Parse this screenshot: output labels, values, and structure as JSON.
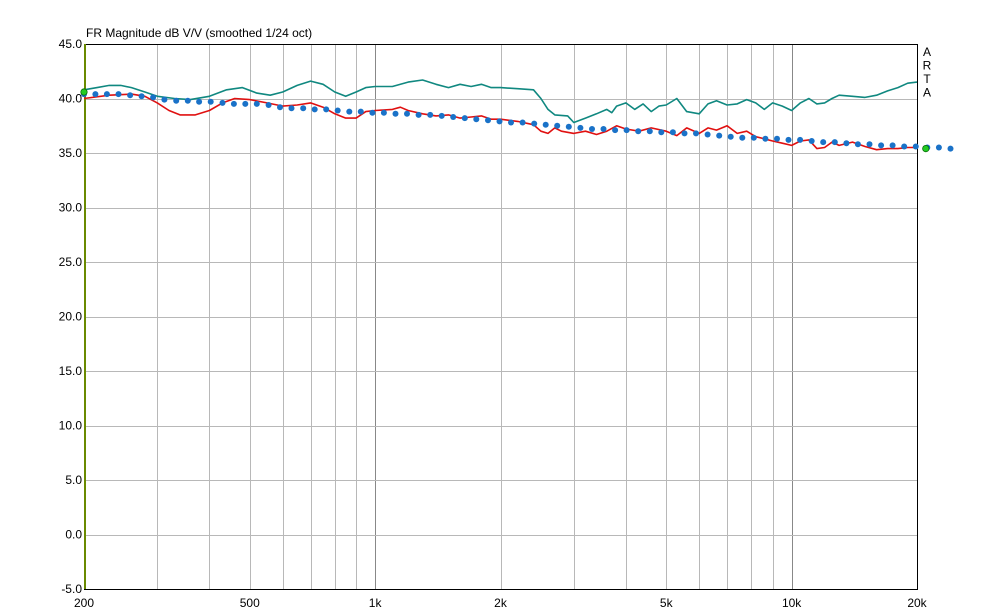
{
  "chart_data": {
    "type": "line",
    "title": "FR Magnitude dB V/V (smoothed 1/24 oct)",
    "watermark": "ARTA",
    "x_scale": "log",
    "xlim": [
      200,
      20000
    ],
    "ylim": [
      -5,
      45
    ],
    "grid": true,
    "colors": {
      "background": "#ffffff",
      "grid": "#b8b8b8",
      "grid_major": "#888888",
      "frame": "#000000",
      "left_axis": "#6a8a00",
      "cursor_marker": "#22cc22"
    },
    "y_ticks": [
      {
        "value": 45,
        "label": "45.0"
      },
      {
        "value": 40,
        "label": "40.0"
      },
      {
        "value": 35,
        "label": "35.0"
      },
      {
        "value": 30,
        "label": "30.0"
      },
      {
        "value": 25,
        "label": "25.0"
      },
      {
        "value": 20,
        "label": "20.0"
      },
      {
        "value": 15,
        "label": "15.0"
      },
      {
        "value": 10,
        "label": "10.0"
      },
      {
        "value": 5,
        "label": "5.0"
      },
      {
        "value": 0,
        "label": "0.0"
      },
      {
        "value": -5,
        "label": "-5.0"
      }
    ],
    "x_ticks": [
      {
        "value": 200,
        "label": "200"
      },
      {
        "value": 500,
        "label": "500"
      },
      {
        "value": 1000,
        "label": "1k"
      },
      {
        "value": 2000,
        "label": "2k"
      },
      {
        "value": 5000,
        "label": "5k"
      },
      {
        "value": 10000,
        "label": "10k"
      },
      {
        "value": 20000,
        "label": "20k"
      }
    ],
    "x_gridlines": [
      200,
      300,
      400,
      500,
      600,
      700,
      800,
      900,
      1000,
      2000,
      3000,
      4000,
      5000,
      6000,
      7000,
      8000,
      9000,
      10000,
      20000
    ],
    "x_major_gridlines": [
      1000,
      10000
    ],
    "cursor_markers": [
      {
        "x": 200,
        "y": 40.6
      },
      {
        "x": 21000,
        "y": 35.4
      }
    ],
    "series": [
      {
        "color": "#108880",
        "style": "line",
        "points": [
          [
            200,
            40.8
          ],
          [
            215,
            41.0
          ],
          [
            230,
            41.2
          ],
          [
            245,
            41.2
          ],
          [
            260,
            41.0
          ],
          [
            280,
            40.6
          ],
          [
            300,
            40.2
          ],
          [
            330,
            40.0
          ],
          [
            360,
            39.9
          ],
          [
            400,
            40.2
          ],
          [
            440,
            40.8
          ],
          [
            480,
            41.0
          ],
          [
            520,
            40.5
          ],
          [
            560,
            40.3
          ],
          [
            600,
            40.6
          ],
          [
            650,
            41.2
          ],
          [
            700,
            41.6
          ],
          [
            750,
            41.3
          ],
          [
            800,
            40.6
          ],
          [
            850,
            40.2
          ],
          [
            900,
            40.6
          ],
          [
            950,
            41.0
          ],
          [
            1000,
            41.1
          ],
          [
            1100,
            41.1
          ],
          [
            1200,
            41.5
          ],
          [
            1300,
            41.7
          ],
          [
            1400,
            41.3
          ],
          [
            1500,
            41.0
          ],
          [
            1600,
            41.3
          ],
          [
            1700,
            41.1
          ],
          [
            1800,
            41.3
          ],
          [
            1900,
            41.0
          ],
          [
            2000,
            41.0
          ],
          [
            2200,
            40.9
          ],
          [
            2400,
            40.8
          ],
          [
            2500,
            40.0
          ],
          [
            2600,
            39.0
          ],
          [
            2700,
            38.5
          ],
          [
            2900,
            38.4
          ],
          [
            3000,
            37.8
          ],
          [
            3200,
            38.2
          ],
          [
            3400,
            38.6
          ],
          [
            3600,
            39.0
          ],
          [
            3700,
            38.7
          ],
          [
            3800,
            39.3
          ],
          [
            4000,
            39.6
          ],
          [
            4200,
            39.0
          ],
          [
            4400,
            39.5
          ],
          [
            4600,
            38.8
          ],
          [
            4800,
            39.3
          ],
          [
            5000,
            39.4
          ],
          [
            5300,
            40.0
          ],
          [
            5600,
            38.8
          ],
          [
            6000,
            38.6
          ],
          [
            6300,
            39.5
          ],
          [
            6600,
            39.8
          ],
          [
            7000,
            39.4
          ],
          [
            7400,
            39.5
          ],
          [
            7800,
            39.9
          ],
          [
            8200,
            39.6
          ],
          [
            8600,
            39.0
          ],
          [
            9000,
            39.6
          ],
          [
            9500,
            39.3
          ],
          [
            10000,
            38.9
          ],
          [
            10500,
            39.6
          ],
          [
            11000,
            40.0
          ],
          [
            11500,
            39.5
          ],
          [
            12000,
            39.6
          ],
          [
            12500,
            40.0
          ],
          [
            13000,
            40.3
          ],
          [
            14000,
            40.2
          ],
          [
            15000,
            40.1
          ],
          [
            16000,
            40.3
          ],
          [
            17000,
            40.7
          ],
          [
            18000,
            41.0
          ],
          [
            19000,
            41.4
          ],
          [
            20000,
            41.5
          ]
        ]
      },
      {
        "color": "#e01010",
        "style": "line",
        "points": [
          [
            200,
            40.0
          ],
          [
            230,
            40.3
          ],
          [
            260,
            40.4
          ],
          [
            280,
            40.2
          ],
          [
            300,
            39.6
          ],
          [
            320,
            38.9
          ],
          [
            340,
            38.5
          ],
          [
            370,
            38.5
          ],
          [
            400,
            38.9
          ],
          [
            430,
            39.6
          ],
          [
            460,
            40.0
          ],
          [
            500,
            39.9
          ],
          [
            550,
            39.6
          ],
          [
            600,
            39.3
          ],
          [
            650,
            39.4
          ],
          [
            700,
            39.6
          ],
          [
            750,
            39.2
          ],
          [
            800,
            38.6
          ],
          [
            850,
            38.2
          ],
          [
            900,
            38.2
          ],
          [
            950,
            38.8
          ],
          [
            1000,
            38.9
          ],
          [
            1100,
            39.0
          ],
          [
            1150,
            39.2
          ],
          [
            1200,
            38.9
          ],
          [
            1300,
            38.6
          ],
          [
            1400,
            38.4
          ],
          [
            1500,
            38.5
          ],
          [
            1600,
            38.2
          ],
          [
            1700,
            38.3
          ],
          [
            1800,
            38.4
          ],
          [
            1900,
            38.1
          ],
          [
            2000,
            38.1
          ],
          [
            2200,
            37.9
          ],
          [
            2400,
            37.6
          ],
          [
            2500,
            37.0
          ],
          [
            2600,
            36.8
          ],
          [
            2700,
            37.3
          ],
          [
            2800,
            37.0
          ],
          [
            3000,
            36.8
          ],
          [
            3200,
            37.0
          ],
          [
            3400,
            36.7
          ],
          [
            3600,
            37.0
          ],
          [
            3800,
            37.5
          ],
          [
            4000,
            37.2
          ],
          [
            4300,
            37.0
          ],
          [
            4600,
            37.3
          ],
          [
            5000,
            37.0
          ],
          [
            5300,
            36.6
          ],
          [
            5600,
            37.3
          ],
          [
            6000,
            36.8
          ],
          [
            6300,
            37.3
          ],
          [
            6600,
            37.1
          ],
          [
            7000,
            37.5
          ],
          [
            7400,
            36.8
          ],
          [
            7800,
            37.0
          ],
          [
            8200,
            36.5
          ],
          [
            8600,
            36.3
          ],
          [
            9000,
            36.1
          ],
          [
            9500,
            35.9
          ],
          [
            10000,
            35.7
          ],
          [
            10500,
            36.1
          ],
          [
            11000,
            36.2
          ],
          [
            11500,
            35.4
          ],
          [
            12000,
            35.5
          ],
          [
            12500,
            36.0
          ],
          [
            13000,
            35.7
          ],
          [
            14000,
            36.0
          ],
          [
            15000,
            35.6
          ],
          [
            16000,
            35.3
          ],
          [
            17000,
            35.4
          ],
          [
            18000,
            35.4
          ],
          [
            19000,
            35.5
          ],
          [
            20000,
            35.5
          ]
        ]
      },
      {
        "color": "#1a72c8",
        "style": "dots",
        "points": [
          [
            200,
            40.4
          ],
          [
            213,
            40.4
          ],
          [
            227,
            40.4
          ],
          [
            242,
            40.4
          ],
          [
            258,
            40.3
          ],
          [
            275,
            40.2
          ],
          [
            293,
            40.1
          ],
          [
            312,
            39.9
          ],
          [
            333,
            39.8
          ],
          [
            355,
            39.8
          ],
          [
            378,
            39.7
          ],
          [
            403,
            39.7
          ],
          [
            430,
            39.6
          ],
          [
            458,
            39.5
          ],
          [
            488,
            39.5
          ],
          [
            520,
            39.5
          ],
          [
            555,
            39.4
          ],
          [
            591,
            39.2
          ],
          [
            630,
            39.1
          ],
          [
            672,
            39.1
          ],
          [
            716,
            39.0
          ],
          [
            763,
            39.0
          ],
          [
            813,
            38.9
          ],
          [
            867,
            38.8
          ],
          [
            924,
            38.8
          ],
          [
            985,
            38.7
          ],
          [
            1050,
            38.7
          ],
          [
            1119,
            38.6
          ],
          [
            1193,
            38.6
          ],
          [
            1272,
            38.5
          ],
          [
            1356,
            38.5
          ],
          [
            1445,
            38.4
          ],
          [
            1540,
            38.3
          ],
          [
            1642,
            38.2
          ],
          [
            1750,
            38.1
          ],
          [
            1866,
            38.0
          ],
          [
            1989,
            37.9
          ],
          [
            2120,
            37.8
          ],
          [
            2260,
            37.8
          ],
          [
            2409,
            37.7
          ],
          [
            2568,
            37.6
          ],
          [
            2737,
            37.5
          ],
          [
            2918,
            37.4
          ],
          [
            3111,
            37.3
          ],
          [
            3316,
            37.2
          ],
          [
            3535,
            37.2
          ],
          [
            3768,
            37.1
          ],
          [
            4017,
            37.1
          ],
          [
            4282,
            37.0
          ],
          [
            4565,
            37.0
          ],
          [
            4866,
            36.9
          ],
          [
            5187,
            36.9
          ],
          [
            5530,
            36.8
          ],
          [
            5895,
            36.8
          ],
          [
            6284,
            36.7
          ],
          [
            6699,
            36.6
          ],
          [
            7141,
            36.5
          ],
          [
            7613,
            36.4
          ],
          [
            8115,
            36.4
          ],
          [
            8651,
            36.3
          ],
          [
            9222,
            36.3
          ],
          [
            9831,
            36.2
          ],
          [
            10480,
            36.2
          ],
          [
            11172,
            36.1
          ],
          [
            11910,
            36.0
          ],
          [
            12696,
            36.0
          ],
          [
            13534,
            35.9
          ],
          [
            14428,
            35.8
          ],
          [
            15380,
            35.8
          ],
          [
            16396,
            35.7
          ],
          [
            17478,
            35.7
          ],
          [
            18632,
            35.6
          ],
          [
            19863,
            35.6
          ],
          [
            21174,
            35.5
          ],
          [
            22572,
            35.5
          ],
          [
            24063,
            35.4
          ]
        ]
      }
    ]
  }
}
